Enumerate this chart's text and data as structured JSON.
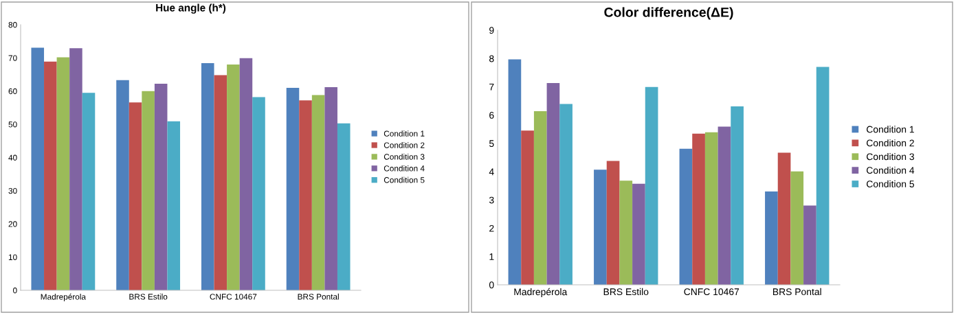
{
  "chart_data": [
    {
      "type": "bar",
      "title": "Hue angle (h*)",
      "categories": [
        "Madrepérola",
        "BRS Estilo",
        "CNFC 10467",
        "BRS Pontal"
      ],
      "series": [
        {
          "name": "Condition 1",
          "color": "#4f81bd",
          "values": [
            73.1,
            63.3,
            68.4,
            61.0
          ]
        },
        {
          "name": "Condition 2",
          "color": "#c0504d",
          "values": [
            68.9,
            56.6,
            64.8,
            57.2
          ]
        },
        {
          "name": "Condition 3",
          "color": "#9bbb59",
          "values": [
            70.2,
            60.0,
            68.0,
            58.8
          ]
        },
        {
          "name": "Condition 4",
          "color": "#8064a2",
          "values": [
            72.9,
            62.2,
            69.9,
            61.2
          ]
        },
        {
          "name": "Condition 5",
          "color": "#4bacc6",
          "values": [
            59.5,
            50.9,
            58.2,
            50.3
          ]
        }
      ],
      "ylim": [
        0,
        80
      ],
      "yticks": [
        0,
        10,
        20,
        30,
        40,
        50,
        60,
        70,
        80
      ],
      "grid": false,
      "legend": "right"
    },
    {
      "type": "bar",
      "title": "Color difference(ΔE)",
      "categories": [
        "Madrepérola",
        "BRS Estilo",
        "CNFC 10467",
        "BRS Pontal"
      ],
      "series": [
        {
          "name": "Condition 1",
          "color": "#4f81bd",
          "values": [
            7.97,
            4.07,
            4.81,
            3.3
          ]
        },
        {
          "name": "Condition 2",
          "color": "#c0504d",
          "values": [
            5.45,
            4.38,
            5.34,
            4.67
          ]
        },
        {
          "name": "Condition 3",
          "color": "#9bbb59",
          "values": [
            6.14,
            3.68,
            5.39,
            4.01
          ]
        },
        {
          "name": "Condition 4",
          "color": "#8064a2",
          "values": [
            7.13,
            3.57,
            5.59,
            2.8
          ]
        },
        {
          "name": "Condition 5",
          "color": "#4bacc6",
          "values": [
            6.39,
            6.99,
            6.31,
            7.7
          ]
        }
      ],
      "ylim": [
        0,
        9
      ],
      "yticks": [
        0,
        1,
        2,
        3,
        4,
        5,
        6,
        7,
        8,
        9
      ],
      "grid": false,
      "legend": "right"
    }
  ]
}
